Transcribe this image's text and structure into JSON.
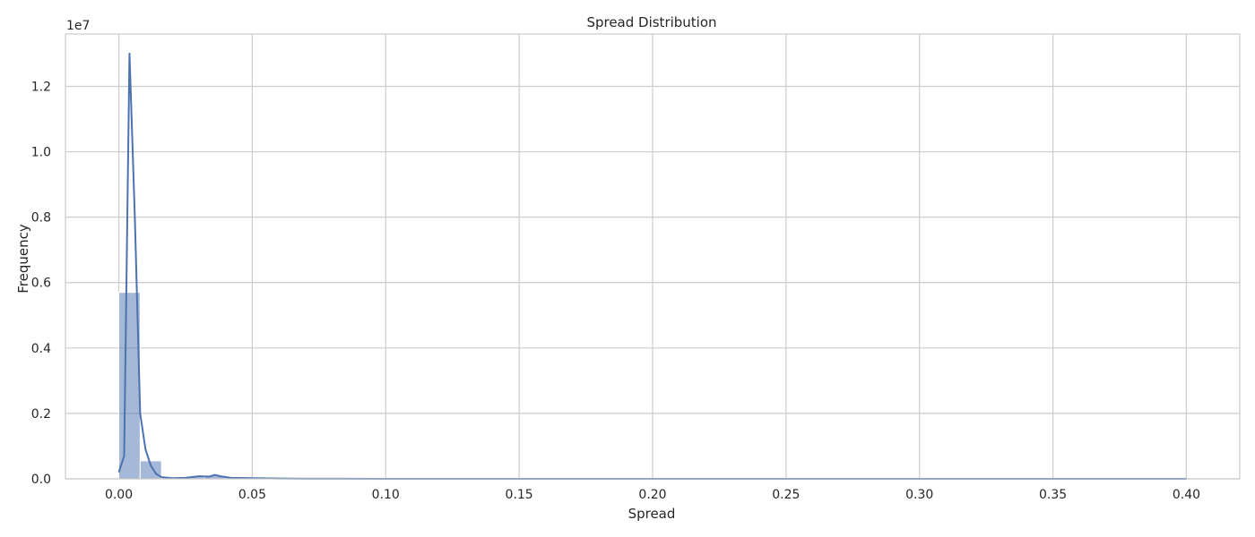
{
  "chart_data": {
    "type": "bar",
    "title": "Spread Distribution",
    "xlabel": "Spread",
    "ylabel": "Frequency",
    "y_offset_label": "1e7",
    "xlim": [
      -0.02,
      0.42
    ],
    "ylim": [
      0,
      1.36
    ],
    "x_ticks": [
      0.0,
      0.05,
      0.1,
      0.15,
      0.2,
      0.25,
      0.3,
      0.35,
      0.4
    ],
    "x_tick_labels": [
      "0.00",
      "0.05",
      "0.10",
      "0.15",
      "0.20",
      "0.25",
      "0.30",
      "0.35",
      "0.40"
    ],
    "y_ticks": [
      0.0,
      0.2,
      0.4,
      0.6,
      0.8,
      1.0,
      1.2
    ],
    "y_tick_labels": [
      "0.0",
      "0.2",
      "0.4",
      "0.6",
      "0.8",
      "1.0",
      "1.2"
    ],
    "grid": true,
    "histogram": {
      "bin_edges": [
        0.0,
        0.008,
        0.016,
        0.024,
        0.032,
        0.04,
        0.048,
        0.056,
        0.064
      ],
      "values": [
        0.57,
        0.055,
        0.003,
        0.006,
        0.01,
        0.004,
        0.002,
        0.001
      ],
      "color": "#4c72b0"
    },
    "kde": {
      "x": [
        0.0,
        0.002,
        0.004,
        0.006,
        0.008,
        0.01,
        0.012,
        0.014,
        0.016,
        0.02,
        0.025,
        0.03,
        0.034,
        0.036,
        0.038,
        0.042,
        0.05,
        0.06,
        0.07,
        0.08,
        0.1,
        0.15,
        0.2,
        0.25,
        0.3,
        0.35,
        0.4
      ],
      "y": [
        0.02,
        0.07,
        1.3,
        0.8,
        0.2,
        0.09,
        0.04,
        0.015,
        0.005,
        0.002,
        0.003,
        0.008,
        0.007,
        0.012,
        0.008,
        0.003,
        0.002,
        0.001,
        0.0005,
        0.0003,
        0.0001,
        0.0,
        0.0,
        0.0,
        0.0,
        0.0,
        0.0
      ],
      "color": "#4c72b0"
    }
  }
}
